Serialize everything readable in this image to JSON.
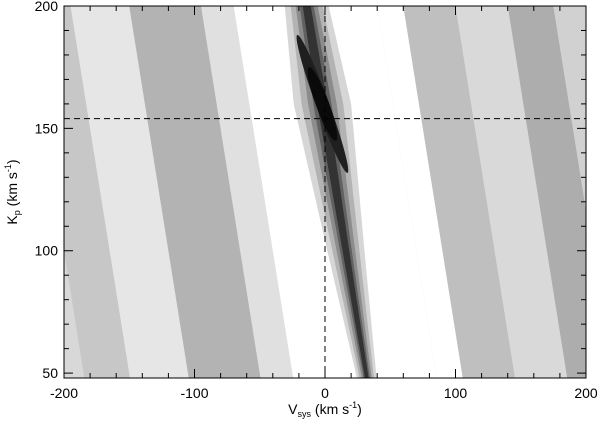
{
  "chart_data": {
    "type": "heatmap",
    "title": "",
    "colormap": "grayscale (white = low, black = high)",
    "xlabel": {
      "main": "V",
      "sub": "sys",
      "unit_pre": " (km s",
      "sup": "-1",
      "unit_post": ")"
    },
    "ylabel": {
      "main": "K",
      "sub": "p",
      "unit_pre": " (km s",
      "sup": "-1",
      "unit_post": ")"
    },
    "xlim": [
      -200,
      200
    ],
    "ylim": [
      48,
      200
    ],
    "xticks": [
      -200,
      -100,
      0,
      100,
      200
    ],
    "xtick_labels": [
      "-200",
      "-100",
      "0",
      "100",
      "200"
    ],
    "yticks": [
      50,
      100,
      150,
      200
    ],
    "ytick_labels": [
      "50",
      "100",
      "150",
      "200"
    ],
    "reference_lines": {
      "vertical_vsys": 0,
      "horizontal_kp": 154,
      "style": "dashed"
    },
    "peak": {
      "vsys": 0,
      "kp": 160
    },
    "signal_ridge": [
      {
        "kp": 200,
        "vsys": -14
      },
      {
        "kp": 150,
        "vsys": 1
      },
      {
        "kp": 100,
        "vsys": 16
      },
      {
        "kp": 48,
        "vsys": 32
      }
    ],
    "background_bands": [
      {
        "vsys_at_kp200": -230,
        "level": 0.22
      },
      {
        "vsys_at_kp200": -195,
        "level": 0.1
      },
      {
        "vsys_at_kp200": -150,
        "level": 0.3
      },
      {
        "vsys_at_kp200": -95,
        "level": 0.12
      },
      {
        "vsys_at_kp200": -70,
        "level": 0.0
      },
      {
        "vsys_at_kp200": 40,
        "level": 0.0
      },
      {
        "vsys_at_kp200": 60,
        "level": 0.25
      },
      {
        "vsys_at_kp200": 100,
        "level": 0.15
      },
      {
        "vsys_at_kp200": 140,
        "level": 0.32
      },
      {
        "vsys_at_kp200": 175,
        "level": 0.18
      }
    ]
  }
}
